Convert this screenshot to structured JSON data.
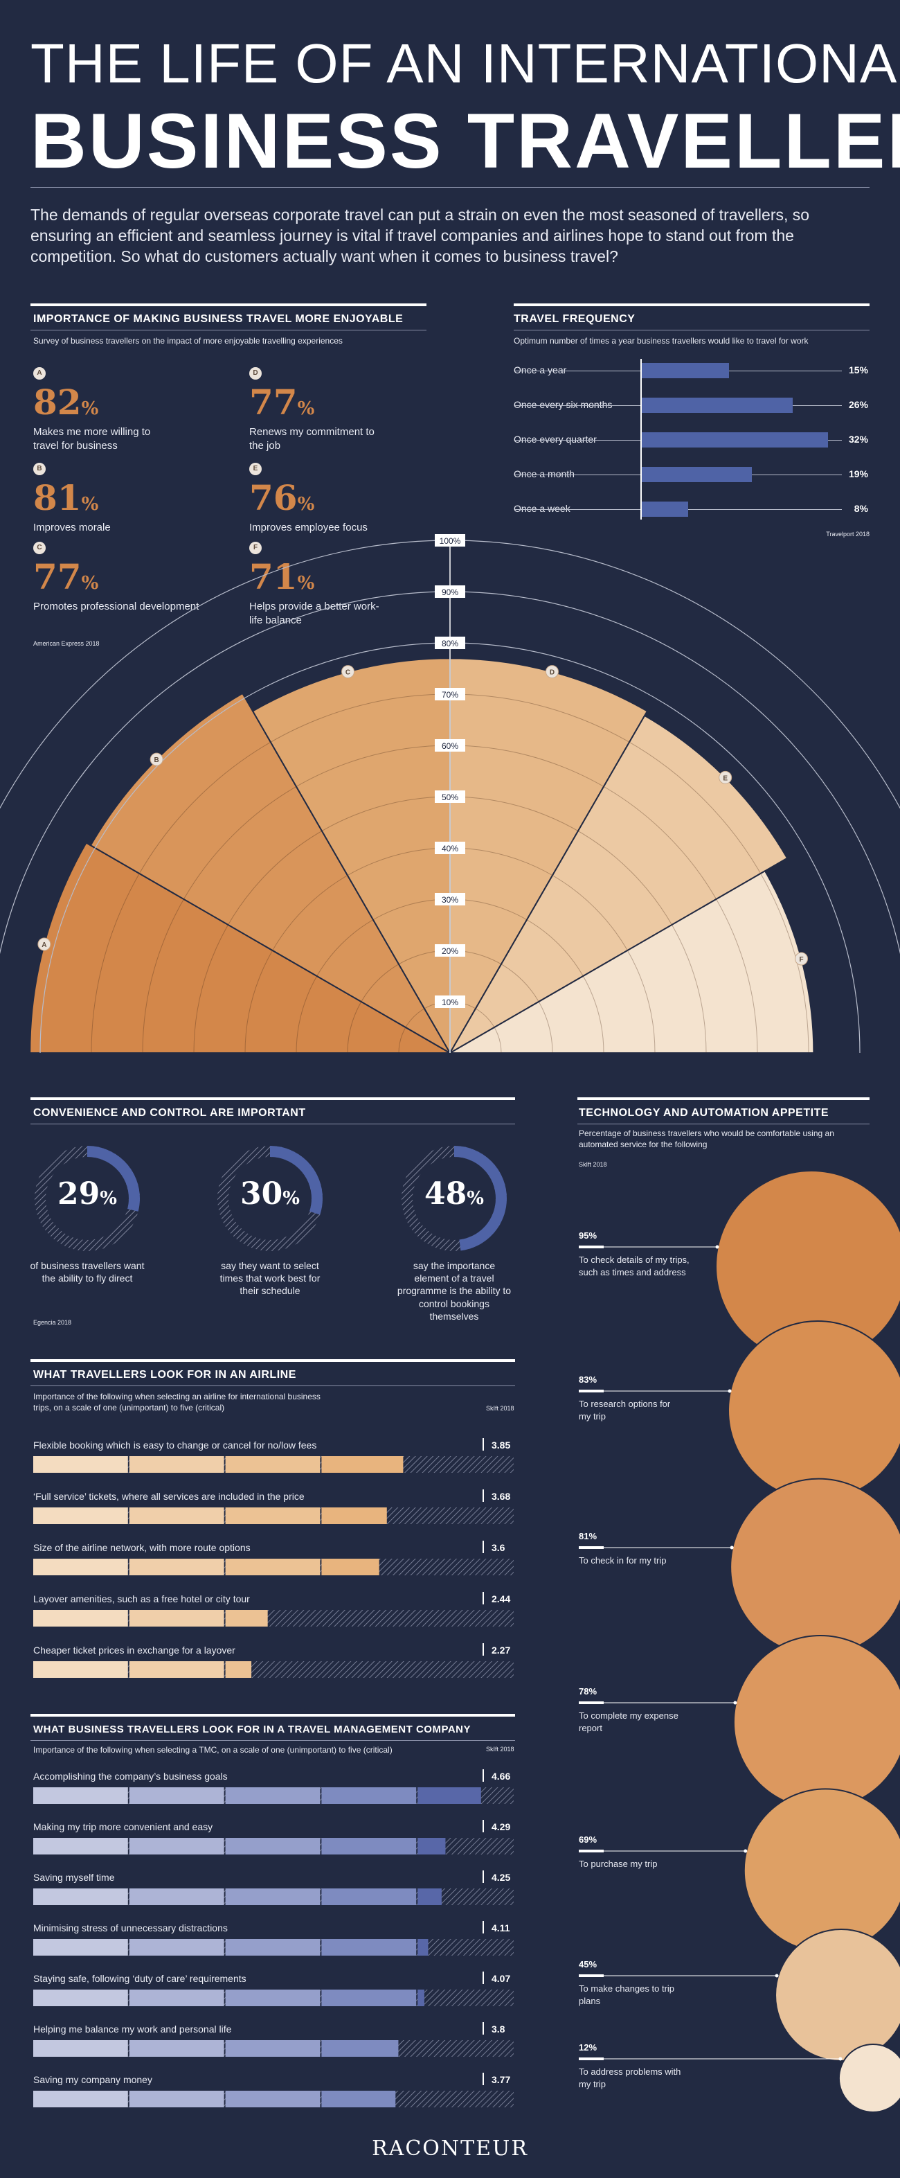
{
  "header": {
    "title_line1": "THE LIFE OF AN INTERNATIONAL",
    "title_line2": "BUSINESS TRAVELLER",
    "intro": "The demands of regular overseas corporate travel can put a strain on even the most seasoned of travellers, so ensuring an efficient and seamless journey is vital if travel companies and airlines hope to stand out from the competition. So what do customers actually want when it comes to business travel?"
  },
  "enjoyable": {
    "title": "IMPORTANCE OF MAKING BUSINESS TRAVEL MORE ENJOYABLE",
    "subtitle": "Survey of business travellers on the impact of more enjoyable travelling experiences",
    "source": "American Express 2018",
    "unit": "%",
    "items": [
      {
        "letter": "A",
        "value": 82,
        "label": "Makes me more willing to travel for business"
      },
      {
        "letter": "B",
        "value": 81,
        "label": "Improves morale"
      },
      {
        "letter": "C",
        "value": 77,
        "label": "Promotes professional development"
      },
      {
        "letter": "D",
        "value": 77,
        "label": "Renews my commitment to the job"
      },
      {
        "letter": "E",
        "value": 76,
        "label": "Improves employee focus"
      },
      {
        "letter": "F",
        "value": 71,
        "label": "Helps provide a better work-life balance"
      }
    ],
    "scale_labels": [
      "10%",
      "20%",
      "30%",
      "40%",
      "50%",
      "60%",
      "70%",
      "80%",
      "90%",
      "100%"
    ],
    "colors": [
      "#d3874a",
      "#d9955a",
      "#dfa66e",
      "#e6b888",
      "#ecc9a3",
      "#f4e3cf"
    ]
  },
  "frequency": {
    "title": "TRAVEL FREQUENCY",
    "subtitle": "Optimum number of times a year business travellers would like to travel for work",
    "source": "Travelport 2018",
    "bar_color": "#4f63a6",
    "rows": [
      {
        "label": "Once a year",
        "value": 15,
        "display": "15%"
      },
      {
        "label": "Once every six months",
        "value": 26,
        "display": "26%"
      },
      {
        "label": "Once every quarter",
        "value": 32,
        "display": "32%"
      },
      {
        "label": "Once a month",
        "value": 19,
        "display": "19%"
      },
      {
        "label": "Once a week",
        "value": 8,
        "display": "8%"
      }
    ]
  },
  "convenience": {
    "title": "CONVENIENCE AND CONTROL ARE IMPORTANT",
    "source": "Egencia 2018",
    "ring_color": "#4f63a6",
    "stats": [
      {
        "value": 29,
        "num": "29",
        "unit": "%",
        "label": "of business travellers want the ability to fly direct"
      },
      {
        "value": 30,
        "num": "30",
        "unit": "%",
        "label": "say they want to select times that work best for their schedule"
      },
      {
        "value": 48,
        "num": "48",
        "unit": "%",
        "label": "say the importance element of a travel programme is the ability to control bookings themselves"
      }
    ]
  },
  "airline": {
    "title": "WHAT TRAVELLERS LOOK FOR IN AN AIRLINE",
    "subtitle": "Importance of the following when selecting an airline for international business trips, on a scale of one (unimportant) to five (critical)",
    "source": "SkIft 2018",
    "max": 5,
    "colors": [
      "#f4dcc0",
      "#f0cfaa",
      "#ecc294",
      "#e8b47e",
      "#e09c5e"
    ],
    "rows": [
      {
        "label": "Flexible booking which is easy to change or cancel for no/low fees",
        "value": 3.85,
        "display": "3.85"
      },
      {
        "label": "‘Full service’ tickets, where all services are included in the price",
        "value": 3.68,
        "display": "3.68"
      },
      {
        "label": "Size of the airline network, with more route options",
        "value": 3.6,
        "display": "3.6"
      },
      {
        "label": "Layover amenities, such as a free hotel or city tour",
        "value": 2.44,
        "display": "2.44"
      },
      {
        "label": "Cheaper ticket prices in exchange for a layover",
        "value": 2.27,
        "display": "2.27"
      }
    ]
  },
  "tmc": {
    "title": "WHAT BUSINESS TRAVELLERS LOOK FOR IN A TRAVEL MANAGEMENT COMPANY",
    "subtitle": "Importance of the following when selecting a TMC, on a scale of one (unimportant) to five (critical)",
    "source": "SkIft 2018",
    "max": 5,
    "colors": [
      "#c3c8e0",
      "#adb4d6",
      "#959fcb",
      "#7e8bc0",
      "#5867a8"
    ],
    "rows": [
      {
        "label": "Accomplishing the company’s business goals",
        "value": 4.66,
        "display": "4.66"
      },
      {
        "label": "Making my trip more convenient and easy",
        "value": 4.29,
        "display": "4.29"
      },
      {
        "label": "Saving myself time",
        "value": 4.25,
        "display": "4.25"
      },
      {
        "label": "Minimising stress of unnecessary distractions",
        "value": 4.11,
        "display": "4.11"
      },
      {
        "label": "Staying safe, following ‘duty of care’ requirements",
        "value": 4.07,
        "display": "4.07"
      },
      {
        "label": "Helping me balance my work and personal life",
        "value": 3.8,
        "display": "3.8"
      },
      {
        "label": "Saving my company money",
        "value": 3.77,
        "display": "3.77"
      }
    ]
  },
  "technology": {
    "title": "TECHNOLOGY AND AUTOMATION APPETITE",
    "subtitle": "Percentage of business travellers who would be comfortable using an automated service for the following",
    "source": "SkIft 2018",
    "rows": [
      {
        "value": 95,
        "display": "95%",
        "label": "To check details of my trips, such as times and address",
        "color": "#d3874a"
      },
      {
        "value": 83,
        "display": "83%",
        "label": "To research options for my trip",
        "color": "#d88f52"
      },
      {
        "value": 81,
        "display": "81%",
        "label": "To check in for my trip",
        "color": "#d9925a"
      },
      {
        "value": 78,
        "display": "78%",
        "label": "To complete my expense report",
        "color": "#dc985f"
      },
      {
        "value": 69,
        "display": "69%",
        "label": "To purchase my trip",
        "color": "#dea065"
      },
      {
        "value": 45,
        "display": "45%",
        "label": "To make changes to trip plans",
        "color": "#e8c29a"
      },
      {
        "value": 12,
        "display": "12%",
        "label": "To address problems with my trip",
        "color": "#f4e3cf"
      }
    ]
  },
  "chart_data": [
    {
      "type": "pie",
      "title": "IMPORTANCE OF MAKING BUSINESS TRAVEL MORE ENJOYABLE",
      "categories": [
        "A",
        "B",
        "C",
        "D",
        "E",
        "F"
      ],
      "values": [
        82,
        81,
        77,
        77,
        76,
        71
      ],
      "ylim": [
        0,
        100
      ]
    },
    {
      "type": "bar",
      "title": "TRAVEL FREQUENCY",
      "categories": [
        "Once a year",
        "Once every six months",
        "Once every quarter",
        "Once a month",
        "Once a week"
      ],
      "values": [
        15,
        26,
        32,
        19,
        8
      ]
    },
    {
      "type": "pie",
      "title": "CONVENIENCE AND CONTROL ARE IMPORTANT",
      "values": [
        29,
        30,
        48
      ]
    },
    {
      "type": "bar",
      "title": "WHAT TRAVELLERS LOOK FOR IN AN AIRLINE",
      "xlim": [
        0,
        5
      ],
      "categories": [
        "Flexible booking which is easy to change or cancel for no/low fees",
        "‘Full service’ tickets, where all services are included in the price",
        "Size of the airline network, with more route options",
        "Layover amenities, such as a free hotel or city tour",
        "Cheaper ticket prices in exchange for a layover"
      ],
      "values": [
        3.85,
        3.68,
        3.6,
        2.44,
        2.27
      ]
    },
    {
      "type": "bar",
      "title": "WHAT BUSINESS TRAVELLERS LOOK FOR IN A TRAVEL MANAGEMENT COMPANY",
      "xlim": [
        0,
        5
      ],
      "categories": [
        "Accomplishing the company’s business goals",
        "Making my trip more convenient and easy",
        "Saving myself time",
        "Minimising stress of unnecessary distractions",
        "Staying safe, following ‘duty of care’ requirements",
        "Helping me balance my work and personal life",
        "Saving my company money"
      ],
      "values": [
        4.66,
        4.29,
        4.25,
        4.11,
        4.07,
        3.8,
        3.77
      ]
    },
    {
      "type": "bar",
      "title": "TECHNOLOGY AND AUTOMATION APPETITE",
      "categories": [
        "To check details of my trips, such as times and address",
        "To research options for my trip",
        "To check in for my trip",
        "To complete my expense report",
        "To purchase my trip",
        "To make changes to trip plans",
        "To address problems with my trip"
      ],
      "values": [
        95,
        83,
        81,
        78,
        69,
        45,
        12
      ]
    }
  ],
  "footer": {
    "logo": "RACONTEUR"
  }
}
